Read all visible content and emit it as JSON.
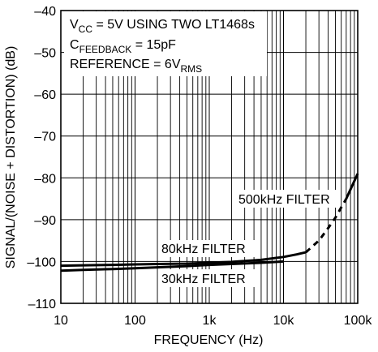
{
  "chart_data": {
    "type": "line",
    "xlabel": "FREQUENCY (Hz)",
    "ylabel": "SIGNAL/(NOISE + DISTORTION) (dB)",
    "x_scale": "log",
    "xlim": [
      10,
      100000
    ],
    "ylim": [
      -110,
      -40
    ],
    "grid": true,
    "x_ticks": [
      10,
      100,
      1000,
      10000,
      100000
    ],
    "x_tick_labels": [
      "10",
      "100",
      "1k",
      "10k",
      "100k"
    ],
    "y_ticks": [
      -40,
      -50,
      -60,
      -70,
      -80,
      -90,
      -100,
      -110
    ],
    "y_tick_labels": [
      "–40",
      "–50",
      "–60",
      "–70",
      "–80",
      "–90",
      "–100",
      "–110"
    ],
    "annotations": [
      {
        "lines": [
          {
            "main": "V",
            "sub": "CC",
            "rest": " = 5V USING TWO LT1468s"
          },
          {
            "main": "C",
            "sub": "FEEDBACK",
            "rest": " = 15pF"
          },
          {
            "main": "REFERENCE = 6V",
            "sub": "RMS",
            "rest": ""
          }
        ]
      }
    ],
    "series": [
      {
        "name": "30kHz FILTER",
        "x": [
          10,
          20,
          50,
          100,
          200,
          500,
          1000,
          2000,
          5000,
          10000
        ],
        "y": [
          -102.2,
          -102,
          -101.8,
          -101.6,
          -101.4,
          -101.1,
          -100.8,
          -100.6,
          -100.3,
          -100
        ]
      },
      {
        "name": "80kHz FILTER",
        "x": [
          10,
          20,
          50,
          100,
          200,
          500,
          1000,
          2000,
          5000,
          10000,
          15000,
          20000
        ],
        "y": [
          -101,
          -100.9,
          -100.8,
          -100.7,
          -100.6,
          -100.5,
          -100.3,
          -100.1,
          -99.6,
          -98.9,
          -98.3,
          -97.8
        ]
      },
      {
        "name": "500kHz FILTER",
        "x": [
          20000,
          30000,
          40000,
          50000,
          70000,
          100000
        ],
        "y": [
          -97.8,
          -95,
          -92,
          -89.5,
          -85,
          -79
        ]
      }
    ],
    "series_labels": [
      "30kHz FILTER",
      "80kHz FILTER",
      "500kHz FILTER"
    ]
  }
}
